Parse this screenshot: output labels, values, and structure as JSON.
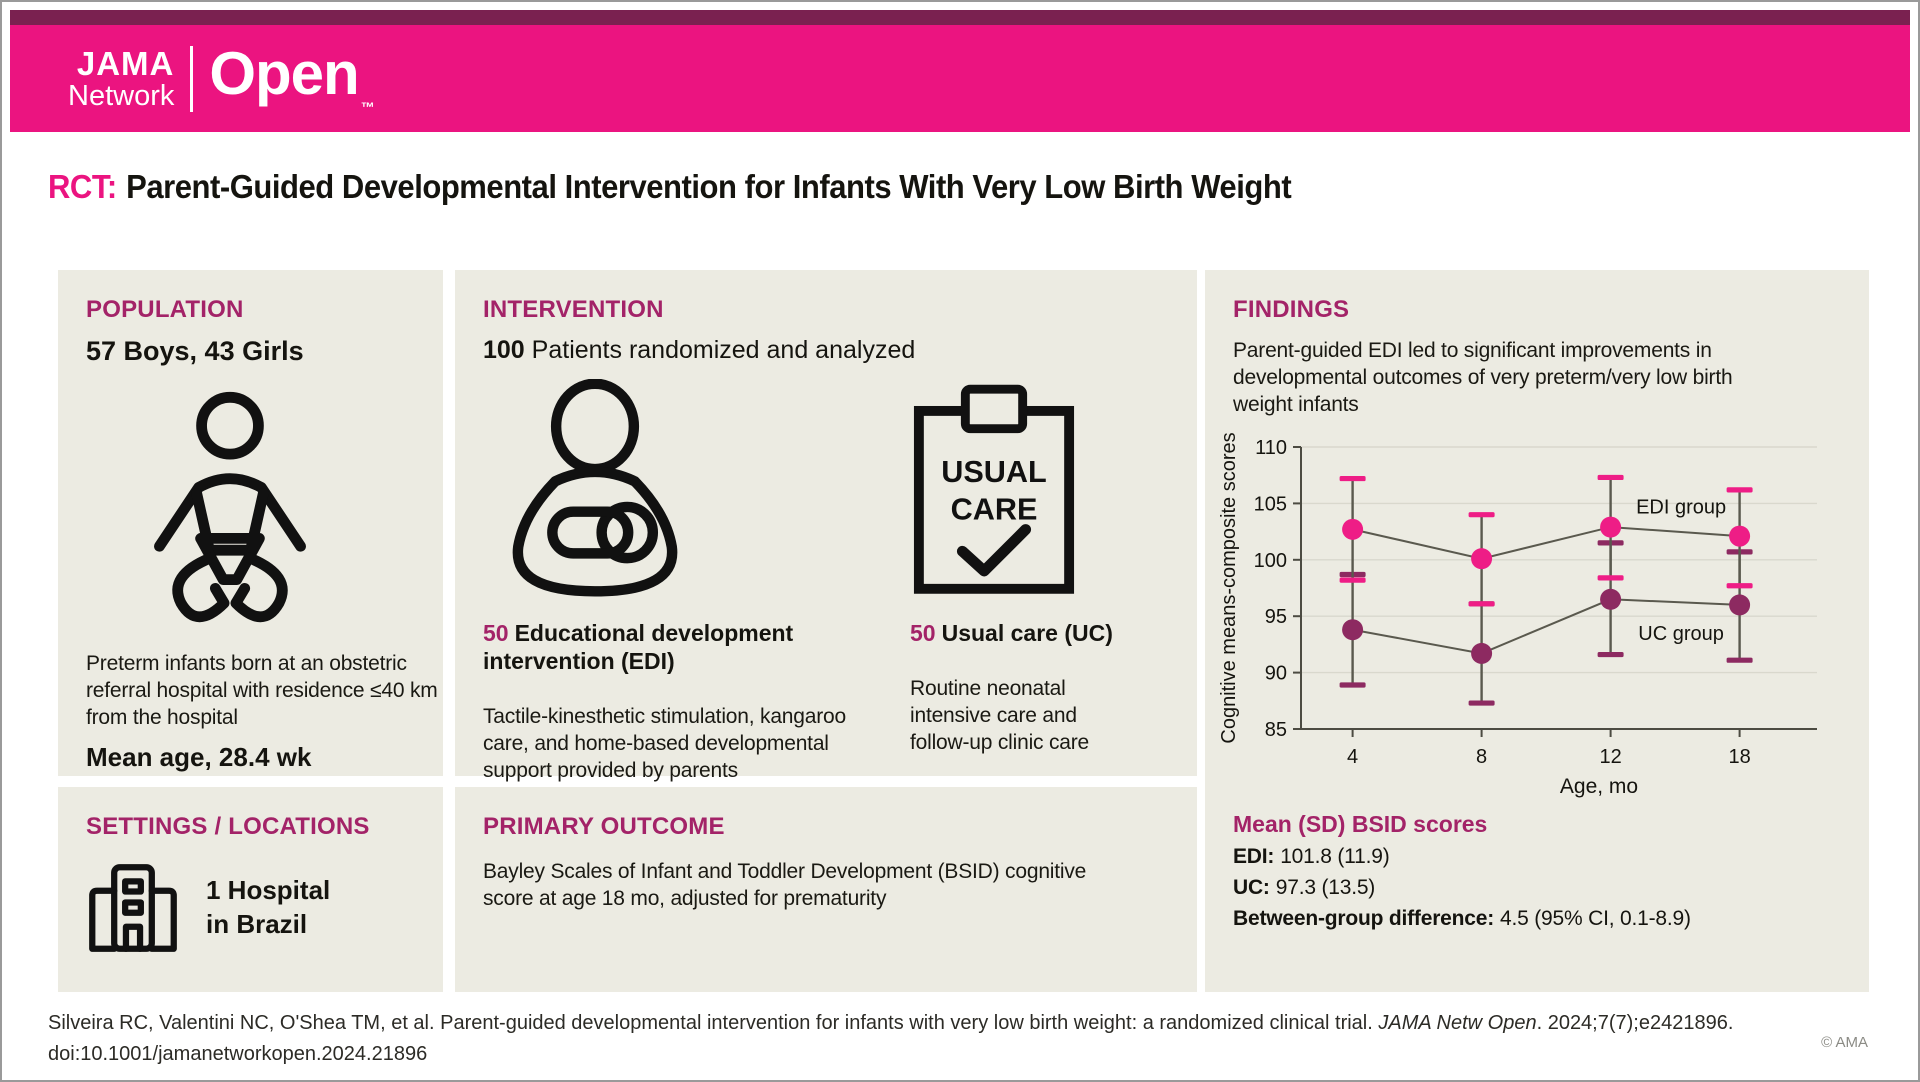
{
  "header": {
    "logo": {
      "jama": "JAMA",
      "network": "Network",
      "open": "Open",
      "tm": "™"
    }
  },
  "title": {
    "tag": "RCT:",
    "text": "Parent-Guided Developmental Intervention for Infants With Very Low Birth Weight"
  },
  "population": {
    "heading": "POPULATION",
    "counts": "57 Boys, 43 Girls",
    "description": "Preterm infants born at an obstetric referral hospital with residence ≤40 km from the hospital",
    "mean_age": "Mean age, 28.4 wk"
  },
  "settings": {
    "heading": "SETTINGS / LOCATIONS",
    "line1": "1 Hospital",
    "line2": "in Brazil"
  },
  "intervention": {
    "heading": "INTERVENTION",
    "count": "100",
    "count_text": " Patients randomized and analyzed",
    "clipboard_line1": "USUAL",
    "clipboard_line2": "CARE",
    "arms": [
      {
        "n": "50",
        "name": "Educational development intervention (EDI)",
        "description": "Tactile-kinesthetic stimulation, kangaroo care, and home-based developmental support provided by parents"
      },
      {
        "n": "50",
        "name": "Usual care (UC)",
        "description": "Routine neonatal intensive care and follow-up clinic care"
      }
    ]
  },
  "primary_outcome": {
    "heading": "PRIMARY OUTCOME",
    "text": "Bayley Scales of Infant and Toddler Development (BSID) cognitive score at age 18 mo, adjusted for prematurity"
  },
  "findings": {
    "heading": "FINDINGS",
    "summary": "Parent-guided EDI led to significant improvements in developmental outcomes of very preterm/very low birth weight infants",
    "scores_heading": "Mean (SD) BSID scores",
    "rows": [
      {
        "label": "EDI:",
        "value": "101.8 (11.9)"
      },
      {
        "label": "UC:",
        "value": "97.3 (13.5)"
      },
      {
        "label": "Between-group difference:",
        "value": "4.5 (95% CI, 0.1-8.9)"
      }
    ]
  },
  "chart_data": {
    "type": "line",
    "x": [
      4,
      8,
      12,
      18
    ],
    "x_tick_labels": [
      "4",
      "8",
      "12",
      "18"
    ],
    "xlabel": "Age, mo",
    "ylabel": "Cognitive means-composite scores",
    "ylim": [
      85,
      110
    ],
    "yticks": [
      85,
      90,
      95,
      100,
      105,
      110
    ],
    "grid": true,
    "legend_position": "inline-labels",
    "series": [
      {
        "name": "UC group",
        "color": "#8d2a61",
        "values": [
          93.8,
          91.7,
          96.5,
          96.0
        ],
        "ci_low": [
          88.9,
          87.3,
          91.6,
          91.1
        ],
        "ci_high": [
          98.7,
          96.1,
          101.5,
          100.7
        ]
      },
      {
        "name": "EDI group",
        "color": "#ee1d86",
        "values": [
          102.7,
          100.1,
          102.9,
          102.1
        ],
        "ci_low": [
          98.2,
          96.1,
          98.4,
          97.7
        ],
        "ci_high": [
          107.2,
          104.0,
          107.3,
          106.2
        ]
      }
    ]
  },
  "footer": {
    "citation_plain": "Silveira RC, Valentini NC, O'Shea TM, et al. Parent-guided developmental intervention for infants with very low birth weight: a randomized clinical trial. ",
    "citation_italic": "JAMA Netw Open",
    "citation_tail": ". 2024;7(7);e2421896.",
    "doi": "doi:10.1001/jamanetworkopen.2024.21896",
    "copyright": "© AMA"
  },
  "colors": {
    "brand_pink": "#eb1480",
    "brand_dark_strip": "#7a2150",
    "heading_magenta": "#a32368",
    "panel_bg": "#ecebe2",
    "edi": "#ee1d86",
    "uc": "#8d2a61"
  }
}
